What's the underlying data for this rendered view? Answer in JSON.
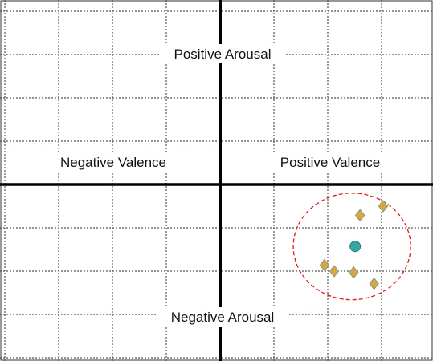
{
  "chart_data": {
    "type": "scatter",
    "title": "",
    "xlabel": "",
    "ylabel": "",
    "xlim": [
      -4,
      4
    ],
    "ylim": [
      -4,
      4
    ],
    "grid": true,
    "quadrant_labels": {
      "top": "Positive Arousal",
      "bottom": "Negative Arousal",
      "left": "Negative Valence",
      "right": "Positive Valence"
    },
    "series": [
      {
        "marker": "diamond",
        "color": "#e0a53a",
        "points": [
          {
            "x": 2.6,
            "y": -0.71
          },
          {
            "x": 3.03,
            "y": -0.5
          },
          {
            "x": 1.94,
            "y": -1.86
          },
          {
            "x": 2.12,
            "y": -2.0
          },
          {
            "x": 2.48,
            "y": -2.03
          },
          {
            "x": 2.86,
            "y": -2.29
          }
        ]
      },
      {
        "marker": "circle",
        "color": "#35a7a0",
        "points": [
          {
            "x": 2.51,
            "y": -1.43
          }
        ]
      }
    ],
    "annotation": {
      "shape": "dashed-circle",
      "color": "#e01b1b",
      "center": {
        "x": 2.45,
        "y": -1.43
      },
      "radius_x": 1.09,
      "radius_y": 1.23
    }
  }
}
